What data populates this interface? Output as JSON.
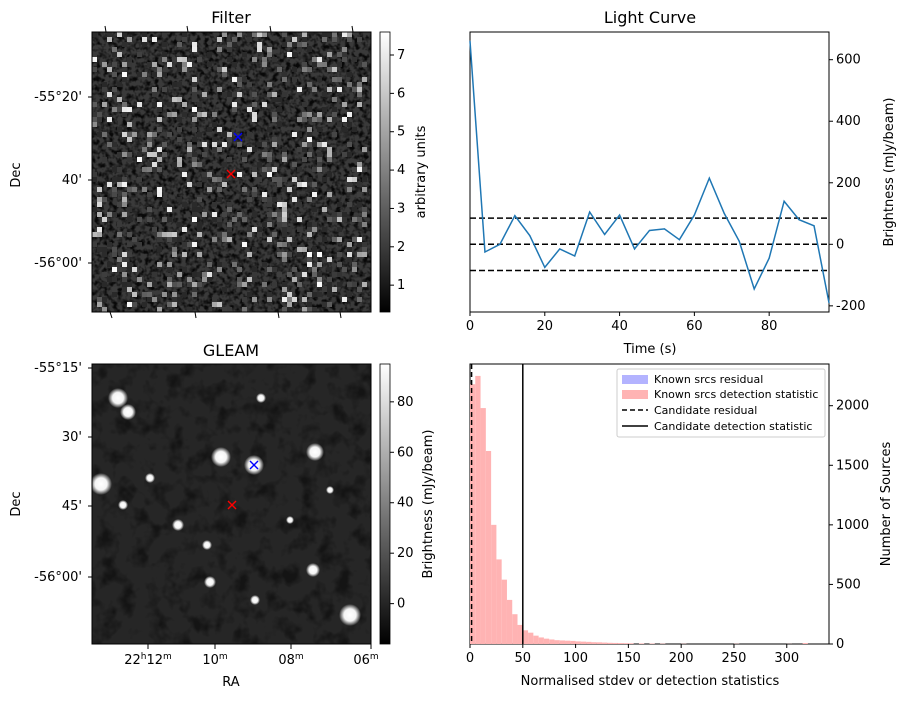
{
  "filter_panel": {
    "title": "Filter",
    "ylabel": "Dec",
    "yticks": [
      "-55°20'",
      "40'",
      "-56°00'"
    ],
    "colorbar": {
      "label": "arbitrary units",
      "ticks": [
        "1",
        "2",
        "3",
        "4",
        "5",
        "6",
        "7"
      ],
      "range": [
        0.3,
        7.6
      ]
    },
    "markers": [
      {
        "symbol": "x",
        "color": "#0000ff"
      },
      {
        "symbol": "x",
        "color": "#ff0000"
      }
    ]
  },
  "gleam_panel": {
    "title": "GLEAM",
    "ylabel": "Dec",
    "xlabel": "RA",
    "yticks": [
      "-55°15'",
      "30'",
      "45'",
      "-56°00'"
    ],
    "xticks": [
      {
        "main": "22",
        "sup1": "h",
        "mid": "12",
        "sup2": "m"
      },
      {
        "main": "10",
        "sup1": "",
        "mid": "",
        "sup2": "m"
      },
      {
        "main": "08",
        "sup1": "",
        "mid": "",
        "sup2": "m"
      },
      {
        "main": "06",
        "sup1": "",
        "mid": "",
        "sup2": "m"
      }
    ],
    "colorbar": {
      "label": "Brightness (mJy/beam)",
      "ticks": [
        "0",
        "20",
        "40",
        "60",
        "80"
      ],
      "range": [
        -16,
        95
      ]
    },
    "markers": [
      {
        "symbol": "x",
        "color": "#0000ff"
      },
      {
        "symbol": "x",
        "color": "#ff0000"
      }
    ]
  },
  "chart_data": [
    {
      "type": "line",
      "title": "Light Curve",
      "xlabel": "Time (s)",
      "ylabel": "Brightness (mJy/beam)",
      "xlim": [
        0,
        96
      ],
      "ylim": [
        -220,
        690
      ],
      "xticks": [
        0,
        20,
        40,
        60,
        80
      ],
      "yticks": [
        -200,
        0,
        200,
        400,
        600
      ],
      "y_axis_side": "right",
      "color": "#1f77b4",
      "x": [
        0,
        4,
        8,
        12,
        16,
        20,
        24,
        28,
        32,
        36,
        40,
        44,
        48,
        52,
        56,
        60,
        64,
        68,
        72,
        76,
        80,
        84,
        88,
        92,
        96
      ],
      "y": [
        660,
        -25,
        0,
        93,
        28,
        -75,
        -15,
        -38,
        105,
        32,
        95,
        -15,
        45,
        50,
        15,
        95,
        215,
        100,
        10,
        -145,
        -45,
        140,
        80,
        60,
        -190
      ],
      "hlines": [
        {
          "y": 85,
          "style": "dashed"
        },
        {
          "y": 0,
          "style": "dashed"
        },
        {
          "y": -85,
          "style": "dashed"
        }
      ]
    },
    {
      "type": "bar",
      "subtype": "histogram",
      "xlabel": "Normalised stdev or detection statistics",
      "ylabel": "Number of Sources",
      "xlim": [
        0,
        340
      ],
      "ylim": [
        0,
        2350
      ],
      "xticks": [
        0,
        50,
        100,
        150,
        200,
        250,
        300
      ],
      "yticks": [
        0,
        500,
        1000,
        1500,
        2000
      ],
      "y_axis_side": "right",
      "bin_width": 5,
      "series": [
        {
          "name": "Known srcs residual",
          "color": "#b3b3ff",
          "values": []
        },
        {
          "name": "Known srcs detection statistic",
          "color": "#ffb3b3",
          "bin_starts": [
            0,
            5,
            10,
            15,
            20,
            25,
            30,
            35,
            40,
            45,
            50,
            55,
            60,
            65,
            70,
            75,
            80,
            85,
            90,
            95,
            100,
            105,
            110,
            115,
            120,
            125,
            130,
            135,
            140,
            145,
            150,
            160,
            170,
            180,
            200,
            250,
            300,
            315
          ],
          "values": [
            2180,
            2250,
            1980,
            1620,
            1000,
            710,
            540,
            370,
            250,
            160,
            115,
            95,
            70,
            55,
            45,
            38,
            32,
            30,
            28,
            26,
            22,
            20,
            18,
            15,
            14,
            12,
            10,
            9,
            8,
            7,
            6,
            5,
            4,
            3,
            2,
            2,
            1,
            8
          ]
        }
      ],
      "vlines": [
        {
          "name": "Candidate residual",
          "x": 1.5,
          "style": "dashed"
        },
        {
          "name": "Candidate detection statistic",
          "x": 50,
          "style": "solid"
        }
      ],
      "legend_position": "top-right"
    }
  ]
}
